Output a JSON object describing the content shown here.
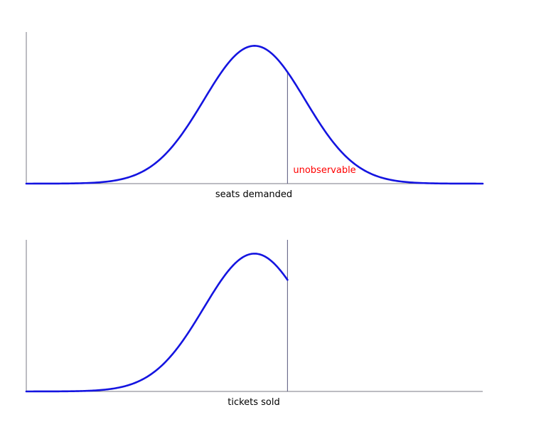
{
  "colors": {
    "curve": "#1414e0",
    "annotation": "#ff0000"
  },
  "chart_data": [
    {
      "type": "line",
      "xlabel": "seats demanded",
      "annotation": "unobservable",
      "truncated": false,
      "xlim": [
        -4.5,
        4.5
      ],
      "ylim": [
        0,
        1.1
      ],
      "mean": 0.0,
      "sd": 1.0,
      "cutoff": 0.65
    },
    {
      "type": "line",
      "xlabel": "tickets sold",
      "annotation": "",
      "truncated": true,
      "xlim": [
        -4.5,
        4.5
      ],
      "ylim": [
        0,
        1.1
      ],
      "mean": 0.0,
      "sd": 1.0,
      "cutoff": 0.65
    }
  ]
}
